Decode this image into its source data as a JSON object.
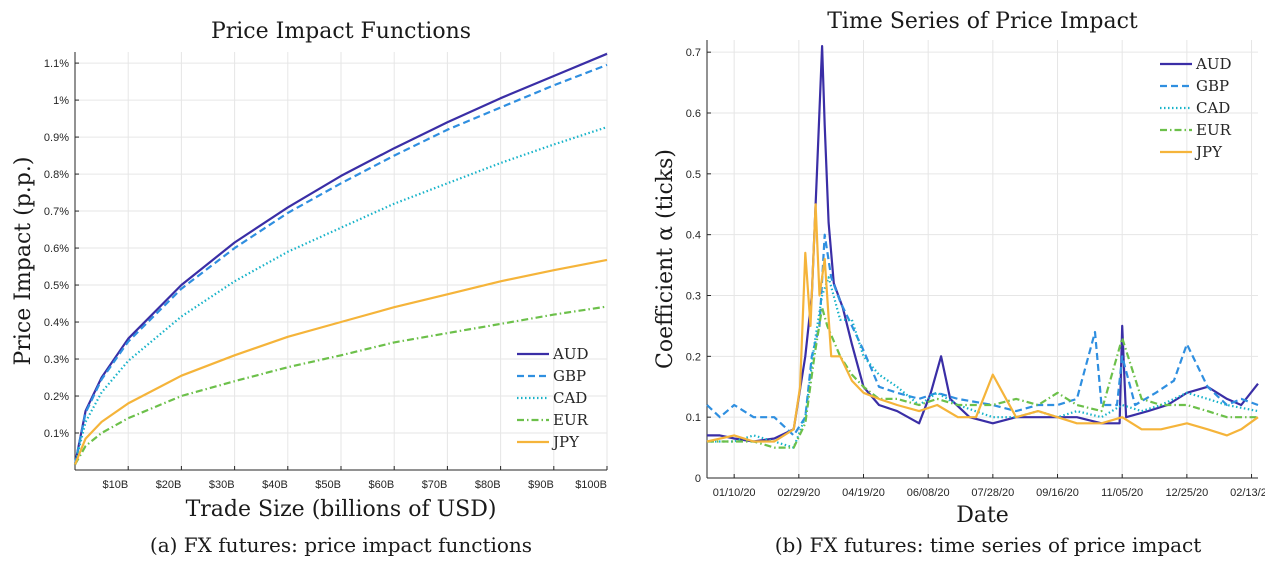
{
  "chart_data": [
    {
      "type": "line",
      "title": "Price Impact Functions",
      "caption": "(a) FX futures: price impact functions",
      "xlabel": "Trade Size (billions of USD)",
      "ylabel": "Price Impact (p.p.)",
      "xlim": [
        0,
        100
      ],
      "ylim": [
        0,
        1.13
      ],
      "xticks": [
        10,
        20,
        30,
        40,
        50,
        60,
        70,
        80,
        90,
        100
      ],
      "xtick_labels": [
        "$10B",
        "$20B",
        "$30B",
        "$40B",
        "$50B",
        "$60B",
        "$70B",
        "$80B",
        "$90B",
        "$100B"
      ],
      "yticks": [
        0.1,
        0.2,
        0.3,
        0.4,
        0.5,
        0.6,
        0.7,
        0.8,
        0.9,
        1.0,
        1.1
      ],
      "ytick_labels": [
        "0.1%",
        "0.2%",
        "0.3%",
        "0.4%",
        "0.5%",
        "0.6%",
        "0.7%",
        "0.8%",
        "0.9%",
        "1%",
        "1.1%"
      ],
      "grid": true,
      "legend_position": "bottom-right",
      "series": [
        {
          "name": "AUD",
          "color": "#3a2ea6",
          "dash": "solid",
          "x": [
            0,
            2,
            5,
            10,
            20,
            30,
            40,
            50,
            60,
            70,
            80,
            90,
            100
          ],
          "y": [
            0.015,
            0.16,
            0.25,
            0.355,
            0.5,
            0.615,
            0.71,
            0.795,
            0.87,
            0.94,
            1.005,
            1.065,
            1.125
          ]
        },
        {
          "name": "GBP",
          "color": "#2f8fe0",
          "dash": "dashed",
          "x": [
            0,
            2,
            5,
            10,
            20,
            30,
            40,
            50,
            60,
            70,
            80,
            90,
            100
          ],
          "y": [
            0.015,
            0.155,
            0.245,
            0.347,
            0.49,
            0.6,
            0.695,
            0.775,
            0.85,
            0.92,
            0.98,
            1.04,
            1.095
          ]
        },
        {
          "name": "CAD",
          "color": "#17b3c9",
          "dash": "dotted",
          "x": [
            0,
            2,
            5,
            10,
            20,
            30,
            40,
            50,
            60,
            70,
            80,
            90,
            100
          ],
          "y": [
            0.015,
            0.13,
            0.21,
            0.295,
            0.415,
            0.51,
            0.59,
            0.655,
            0.72,
            0.775,
            0.83,
            0.88,
            0.927
          ]
        },
        {
          "name": "EUR",
          "color": "#6cc04a",
          "dash": "dashdot",
          "x": [
            0,
            2,
            5,
            10,
            20,
            30,
            40,
            50,
            60,
            70,
            80,
            90,
            100
          ],
          "y": [
            0.015,
            0.065,
            0.1,
            0.14,
            0.2,
            0.24,
            0.278,
            0.31,
            0.345,
            0.37,
            0.395,
            0.42,
            0.442
          ]
        },
        {
          "name": "JPY",
          "color": "#f5b43a",
          "dash": "solid",
          "x": [
            0,
            2,
            5,
            10,
            20,
            30,
            40,
            50,
            60,
            70,
            80,
            90,
            100
          ],
          "y": [
            0.015,
            0.085,
            0.13,
            0.18,
            0.255,
            0.31,
            0.36,
            0.4,
            0.44,
            0.475,
            0.51,
            0.54,
            0.568
          ]
        }
      ]
    },
    {
      "type": "line",
      "title": "Time Series of Price Impact",
      "caption": "(b) FX futures: time series of price impact",
      "xlabel": "Date",
      "ylabel": "Coefficient α (ticks)",
      "x_axis_type": "date",
      "xlim": [
        "2019-12-20",
        "2021-02-18"
      ],
      "ylim": [
        0,
        0.72
      ],
      "xticks": [
        "2020-01-10",
        "2020-02-29",
        "2020-04-19",
        "2020-06-08",
        "2020-07-28",
        "2020-09-16",
        "2020-11-05",
        "2020-12-25",
        "2021-02-13"
      ],
      "xtick_labels": [
        "01/10/20",
        "02/29/20",
        "04/19/20",
        "06/08/20",
        "07/28/20",
        "09/16/20",
        "11/05/20",
        "12/25/20",
        "02/13/21"
      ],
      "yticks": [
        0,
        0.1,
        0.2,
        0.3,
        0.4,
        0.5,
        0.6,
        0.7
      ],
      "ytick_labels": [
        "0",
        "0.1",
        "0.2",
        "0.3",
        "0.4",
        "0.5",
        "0.6",
        "0.7"
      ],
      "grid": true,
      "legend_position": "top-right",
      "series": [
        {
          "name": "AUD",
          "color": "#3a2ea6",
          "dash": "solid",
          "x": [
            "2019-12-20",
            "2019-12-30",
            "2020-01-10",
            "2020-01-25",
            "2020-02-10",
            "2020-02-25",
            "2020-03-05",
            "2020-03-10",
            "2020-03-14",
            "2020-03-18",
            "2020-03-20",
            "2020-03-23",
            "2020-03-27",
            "2020-04-03",
            "2020-04-10",
            "2020-04-19",
            "2020-05-01",
            "2020-05-15",
            "2020-06-01",
            "2020-06-10",
            "2020-06-18",
            "2020-06-25",
            "2020-07-10",
            "2020-07-28",
            "2020-08-15",
            "2020-09-01",
            "2020-09-16",
            "2020-10-01",
            "2020-10-20",
            "2020-11-03",
            "2020-11-05",
            "2020-11-08",
            "2020-11-25",
            "2020-12-10",
            "2020-12-25",
            "2021-01-10",
            "2021-01-25",
            "2021-02-05",
            "2021-02-18"
          ],
          "y": [
            0.07,
            0.07,
            0.065,
            0.06,
            0.065,
            0.08,
            0.2,
            0.3,
            0.5,
            0.71,
            0.58,
            0.42,
            0.32,
            0.28,
            0.22,
            0.15,
            0.12,
            0.11,
            0.09,
            0.14,
            0.2,
            0.13,
            0.1,
            0.09,
            0.1,
            0.1,
            0.1,
            0.1,
            0.09,
            0.09,
            0.25,
            0.1,
            0.11,
            0.12,
            0.14,
            0.15,
            0.13,
            0.12,
            0.155
          ]
        },
        {
          "name": "GBP",
          "color": "#2f8fe0",
          "dash": "dashed",
          "x": [
            "2019-12-20",
            "2019-12-30",
            "2020-01-10",
            "2020-01-25",
            "2020-02-10",
            "2020-02-25",
            "2020-03-05",
            "2020-03-10",
            "2020-03-16",
            "2020-03-20",
            "2020-03-25",
            "2020-04-01",
            "2020-04-10",
            "2020-04-19",
            "2020-05-01",
            "2020-05-15",
            "2020-06-01",
            "2020-06-15",
            "2020-07-01",
            "2020-07-28",
            "2020-08-15",
            "2020-09-01",
            "2020-09-16",
            "2020-10-01",
            "2020-10-15",
            "2020-10-20",
            "2020-11-01",
            "2020-11-05",
            "2020-11-15",
            "2020-12-01",
            "2020-12-15",
            "2020-12-25",
            "2021-01-10",
            "2021-01-25",
            "2021-02-05",
            "2021-02-18"
          ],
          "y": [
            0.12,
            0.1,
            0.12,
            0.1,
            0.1,
            0.07,
            0.1,
            0.2,
            0.25,
            0.4,
            0.33,
            0.29,
            0.25,
            0.21,
            0.15,
            0.14,
            0.13,
            0.14,
            0.13,
            0.12,
            0.11,
            0.12,
            0.12,
            0.13,
            0.24,
            0.12,
            0.12,
            0.2,
            0.12,
            0.14,
            0.16,
            0.22,
            0.15,
            0.12,
            0.13,
            0.12
          ]
        },
        {
          "name": "CAD",
          "color": "#17b3c9",
          "dash": "dotted",
          "x": [
            "2019-12-20",
            "2020-01-10",
            "2020-01-25",
            "2020-02-10",
            "2020-02-25",
            "2020-03-05",
            "2020-03-12",
            "2020-03-18",
            "2020-03-23",
            "2020-04-01",
            "2020-04-10",
            "2020-04-19",
            "2020-05-01",
            "2020-05-15",
            "2020-06-01",
            "2020-06-15",
            "2020-07-01",
            "2020-07-28",
            "2020-08-15",
            "2020-09-01",
            "2020-09-16",
            "2020-10-01",
            "2020-10-20",
            "2020-11-05",
            "2020-11-20",
            "2020-12-05",
            "2020-12-25",
            "2021-01-10",
            "2021-01-25",
            "2021-02-18"
          ],
          "y": [
            0.06,
            0.06,
            0.07,
            0.06,
            0.05,
            0.1,
            0.22,
            0.3,
            0.33,
            0.26,
            0.26,
            0.2,
            0.17,
            0.15,
            0.12,
            0.14,
            0.12,
            0.1,
            0.1,
            0.11,
            0.1,
            0.11,
            0.1,
            0.12,
            0.11,
            0.12,
            0.14,
            0.13,
            0.12,
            0.11
          ]
        },
        {
          "name": "EUR",
          "color": "#6cc04a",
          "dash": "dashdot",
          "x": [
            "2019-12-20",
            "2020-01-10",
            "2020-01-25",
            "2020-02-10",
            "2020-02-25",
            "2020-03-05",
            "2020-03-12",
            "2020-03-18",
            "2020-03-22",
            "2020-04-01",
            "2020-04-10",
            "2020-04-19",
            "2020-05-01",
            "2020-05-15",
            "2020-06-01",
            "2020-06-15",
            "2020-07-01",
            "2020-07-28",
            "2020-08-15",
            "2020-09-01",
            "2020-09-16",
            "2020-10-01",
            "2020-10-20",
            "2020-11-05",
            "2020-11-20",
            "2020-12-05",
            "2020-12-25",
            "2021-01-10",
            "2021-01-25",
            "2021-02-18"
          ],
          "y": [
            0.06,
            0.06,
            0.06,
            0.05,
            0.05,
            0.09,
            0.2,
            0.28,
            0.25,
            0.2,
            0.17,
            0.15,
            0.13,
            0.13,
            0.12,
            0.13,
            0.12,
            0.12,
            0.13,
            0.12,
            0.14,
            0.12,
            0.11,
            0.23,
            0.13,
            0.12,
            0.12,
            0.11,
            0.1,
            0.1
          ]
        },
        {
          "name": "JPY",
          "color": "#f5b43a",
          "dash": "solid",
          "x": [
            "2019-12-20",
            "2020-01-10",
            "2020-01-25",
            "2020-02-10",
            "2020-02-25",
            "2020-03-01",
            "2020-03-05",
            "2020-03-09",
            "2020-03-13",
            "2020-03-16",
            "2020-03-20",
            "2020-03-25",
            "2020-04-01",
            "2020-04-10",
            "2020-04-19",
            "2020-05-01",
            "2020-05-15",
            "2020-06-01",
            "2020-06-15",
            "2020-07-01",
            "2020-07-15",
            "2020-07-28",
            "2020-08-15",
            "2020-09-01",
            "2020-09-16",
            "2020-10-01",
            "2020-10-20",
            "2020-11-05",
            "2020-11-20",
            "2020-12-05",
            "2020-12-25",
            "2021-01-10",
            "2021-01-25",
            "2021-02-05",
            "2021-02-18"
          ],
          "y": [
            0.06,
            0.07,
            0.06,
            0.06,
            0.08,
            0.15,
            0.37,
            0.25,
            0.45,
            0.3,
            0.36,
            0.2,
            0.2,
            0.16,
            0.14,
            0.13,
            0.12,
            0.11,
            0.12,
            0.1,
            0.1,
            0.17,
            0.1,
            0.11,
            0.1,
            0.09,
            0.09,
            0.1,
            0.08,
            0.08,
            0.09,
            0.08,
            0.07,
            0.08,
            0.1
          ]
        }
      ]
    }
  ]
}
